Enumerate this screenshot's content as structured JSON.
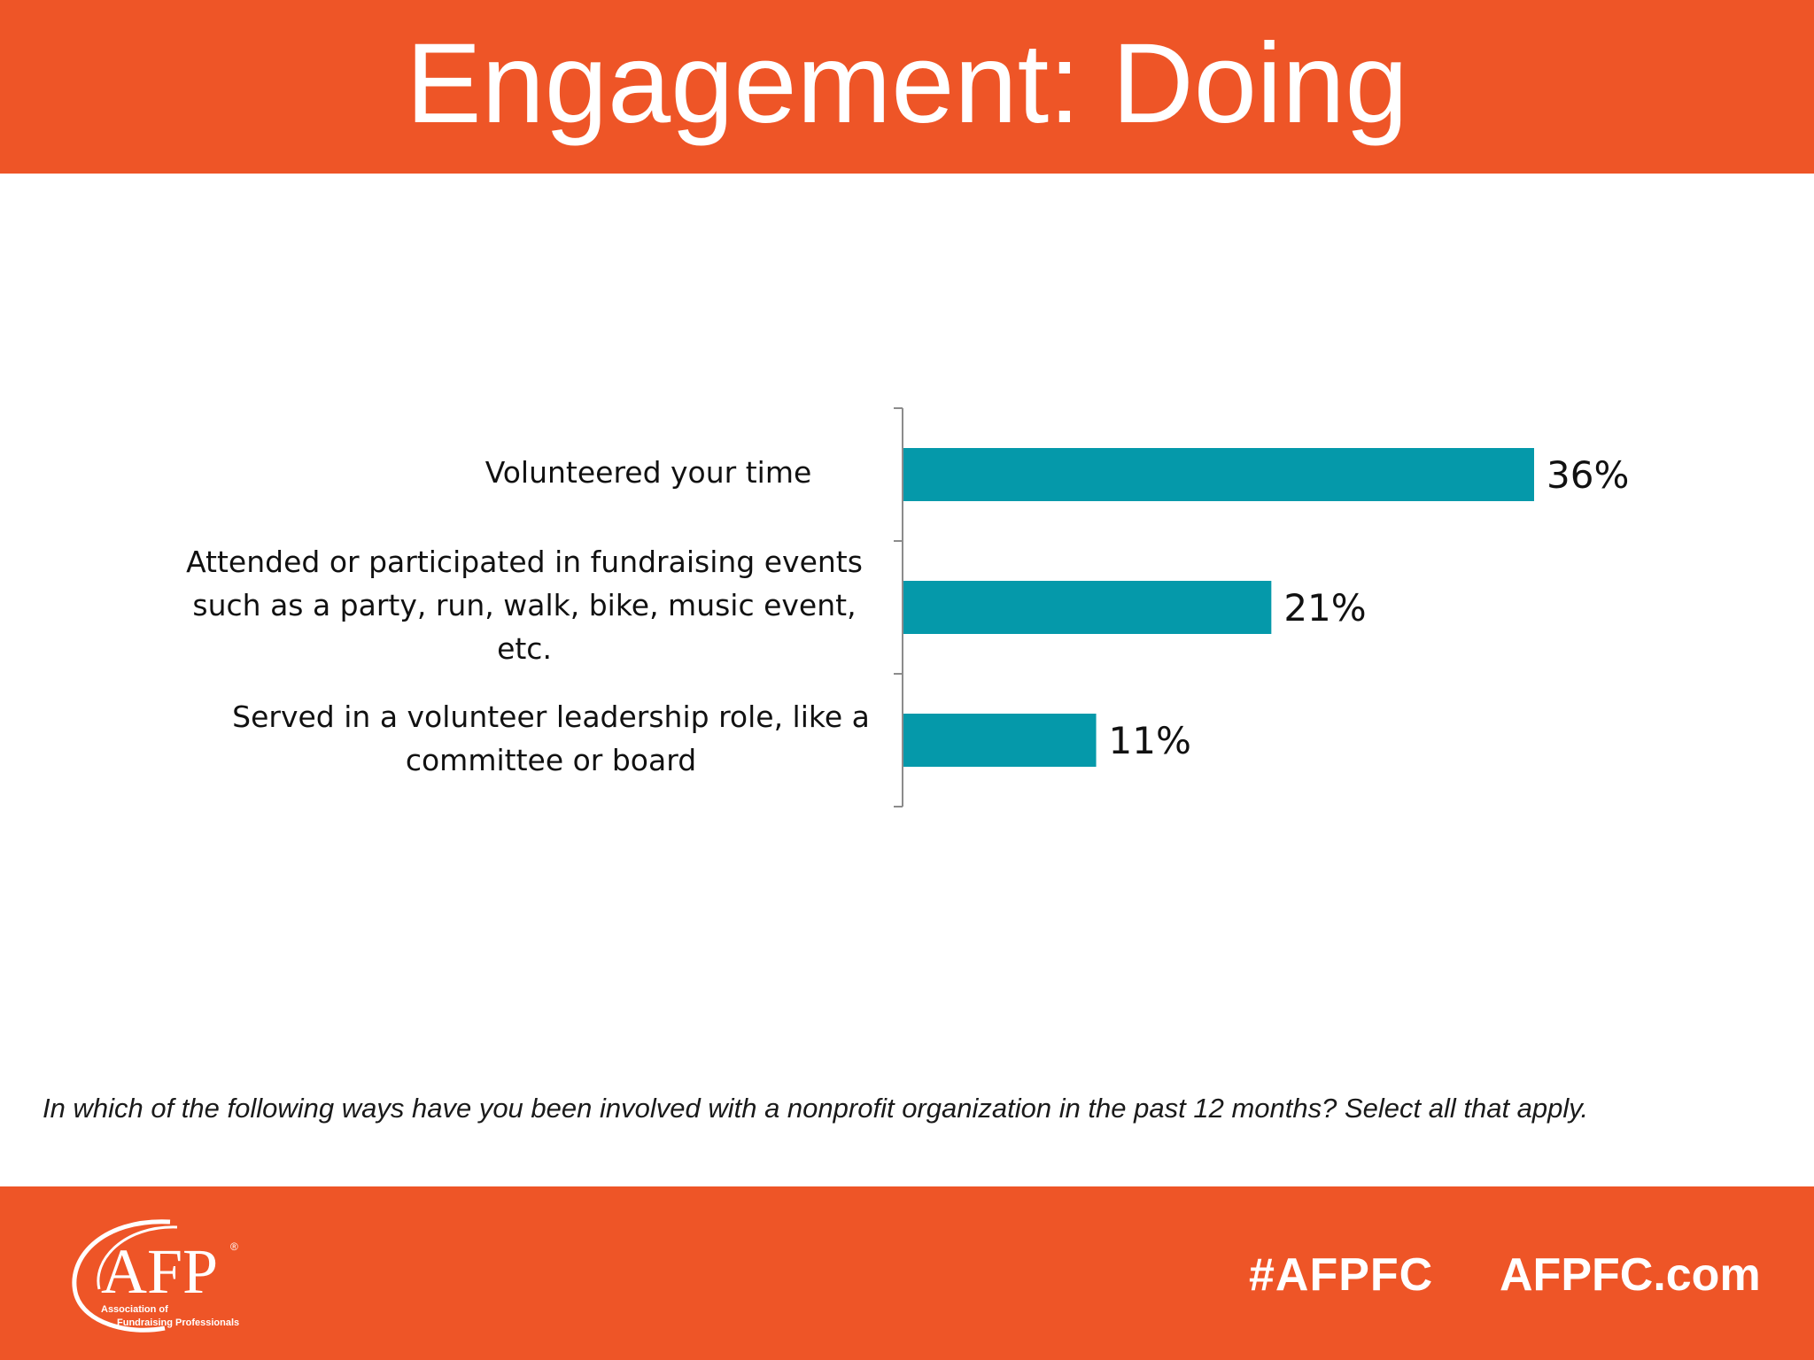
{
  "slide": {
    "title": "Engagement: Doing",
    "question": "In which of the following ways have you been involved with a nonprofit organization in the past 12 months? Select all that apply."
  },
  "footer": {
    "logo_text": "AFP",
    "logo_registered": "®",
    "logo_subtitle_line1": "Association of",
    "logo_subtitle_line2": "Fundraising Professionals",
    "hashtag": "#AFPFC",
    "website": "AFPFC.com"
  },
  "colors": {
    "brand_orange": "#EE5527",
    "bar_teal": "#0599AA"
  },
  "chart_data": {
    "type": "bar",
    "orientation": "horizontal",
    "categories": [
      "Volunteered your time",
      "Attended or participated in fundraising events such as a party, run, walk, bike, music event, etc.",
      "Served in a volunteer leadership role, like a committee or board"
    ],
    "values": [
      36,
      21,
      11
    ],
    "value_labels": [
      "36%",
      "21%",
      "11%"
    ],
    "unit": "%",
    "xlim": [
      0,
      40
    ],
    "grid": false,
    "legend": "none",
    "title": "",
    "xlabel": "",
    "ylabel": ""
  }
}
